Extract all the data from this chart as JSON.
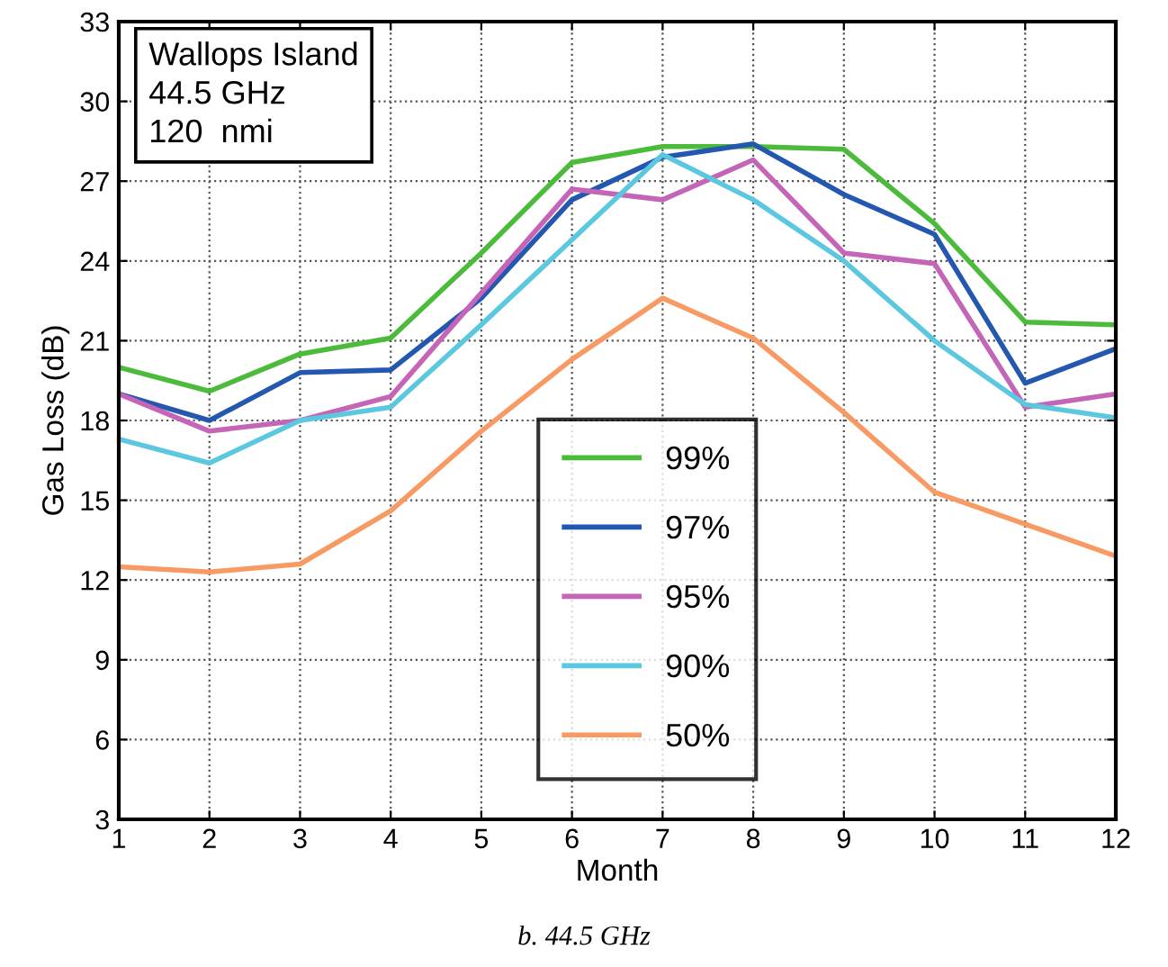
{
  "chart_data": {
    "type": "line",
    "xlabel": "Month",
    "ylabel": "Gas Loss (dB)",
    "x": [
      1,
      2,
      3,
      4,
      5,
      6,
      7,
      8,
      9,
      10,
      11,
      12
    ],
    "xlim": [
      1,
      12
    ],
    "xticks": [
      1,
      2,
      3,
      4,
      5,
      6,
      7,
      8,
      9,
      10,
      11,
      12
    ],
    "ylim": [
      3,
      33
    ],
    "yticks": [
      3,
      6,
      9,
      12,
      15,
      18,
      21,
      24,
      27,
      30,
      33
    ],
    "grid": true,
    "legend": "bottom",
    "marker": "none",
    "line_style": "solid",
    "annotations": [
      "Wallops Island\n44.5 GHz\n120  nmi",
      "b. 44.5 GHz"
    ],
    "series": [
      {
        "name": "99%",
        "color": "#4cbb3c",
        "values": [
          20.0,
          19.1,
          20.5,
          21.1,
          24.3,
          27.7,
          28.3,
          28.3,
          28.2,
          25.4,
          21.7,
          21.6
        ]
      },
      {
        "name": "97%",
        "color": "#2357b0",
        "values": [
          19.0,
          18.0,
          19.8,
          19.9,
          22.6,
          26.3,
          27.9,
          28.4,
          26.5,
          25.0,
          19.4,
          20.7
        ]
      },
      {
        "name": "95%",
        "color": "#c565b8",
        "values": [
          19.0,
          17.6,
          18.0,
          18.9,
          22.8,
          26.7,
          26.3,
          27.8,
          24.3,
          23.9,
          18.5,
          19.0
        ]
      },
      {
        "name": "90%",
        "color": "#5bc8e0",
        "values": [
          17.3,
          16.4,
          18.0,
          18.5,
          21.6,
          24.8,
          28.0,
          26.3,
          24.0,
          21.0,
          18.6,
          18.1
        ]
      },
      {
        "name": "50%",
        "color": "#f89a64",
        "values": [
          12.5,
          12.3,
          12.6,
          14.6,
          17.6,
          20.3,
          22.6,
          21.1,
          18.3,
          15.3,
          14.1,
          12.9
        ]
      }
    ]
  }
}
